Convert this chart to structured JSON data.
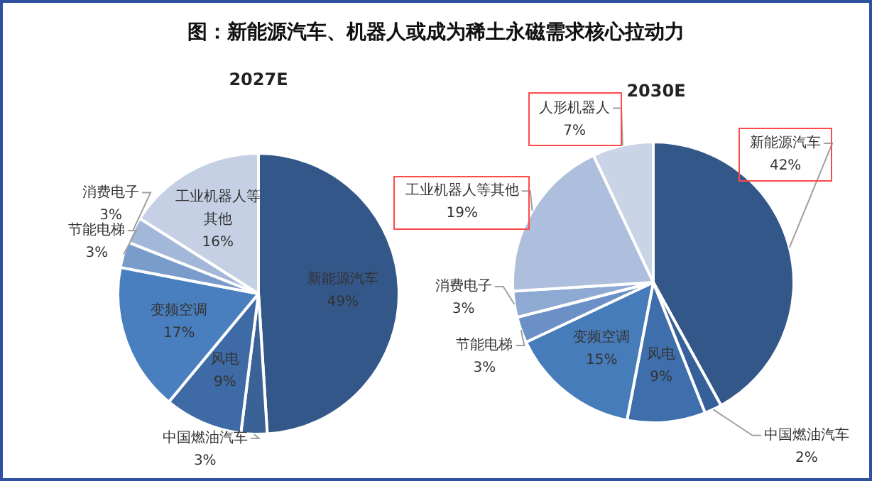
{
  "chart_data": [
    {
      "type": "pie",
      "title": "图：新能源汽车、机器人或成为稀土永磁需求核心拉动力",
      "subtitle": "2027E",
      "categories": [
        "新能源汽车",
        "中国燃油汽车",
        "风电",
        "变频空调",
        "节能电梯",
        "消费电子",
        "工业机器人等其他"
      ],
      "values": [
        49,
        3,
        9,
        17,
        3,
        3,
        16
      ],
      "colors": [
        "#34578a",
        "#3a6296",
        "#3e6aa5",
        "#4a7fbf",
        "#7a9ccb",
        "#a3b7d8",
        "#c5d0e4"
      ],
      "value_labels": [
        "49%",
        "3%",
        "9%",
        "17%",
        "3%",
        "3%",
        "16%"
      ]
    },
    {
      "type": "pie",
      "subtitle": "2030E",
      "categories": [
        "新能源汽车",
        "中国燃油汽车",
        "风电",
        "变频空调",
        "节能电梯",
        "消费电子",
        "工业机器人等其他",
        "人形机器人"
      ],
      "values": [
        42,
        2,
        9,
        15,
        3,
        3,
        19,
        7
      ],
      "colors": [
        "#34578a",
        "#36609a",
        "#3e6eab",
        "#477cba",
        "#6a90c6",
        "#8eaad3",
        "#adbfdc",
        "#c9d4e7"
      ],
      "value_labels": [
        "42%",
        "2%",
        "9%",
        "15%",
        "3%",
        "3%",
        "19%",
        "7%"
      ]
    }
  ]
}
